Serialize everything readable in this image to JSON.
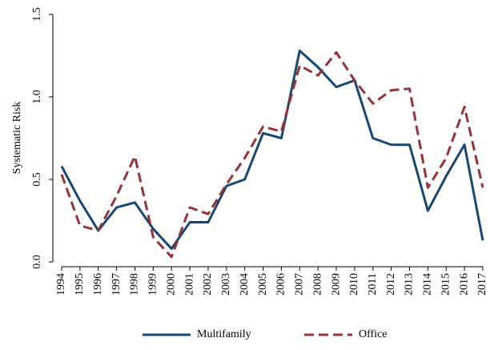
{
  "chart_data": {
    "type": "line",
    "y_label": "Systematic Risk",
    "categories": [
      "1994",
      "1995",
      "1996",
      "1997",
      "1998",
      "1999",
      "2000",
      "2001",
      "2002",
      "2003",
      "2004",
      "2005",
      "2006",
      "2007",
      "2008",
      "2009",
      "2010",
      "2011",
      "2012",
      "2013",
      "2014",
      "2015",
      "2016",
      "2017"
    ],
    "series": [
      {
        "name": "Multifamily",
        "color": "#1a476f",
        "dash": "solid",
        "values": [
          0.58,
          0.37,
          0.19,
          0.33,
          0.36,
          0.2,
          0.08,
          0.24,
          0.24,
          0.46,
          0.5,
          0.78,
          0.75,
          1.28,
          1.18,
          1.06,
          1.1,
          0.75,
          0.71,
          0.71,
          0.31,
          0.52,
          0.71,
          0.13
        ]
      },
      {
        "name": "Office",
        "color": "#90353b",
        "dash": "dashed",
        "values": [
          0.53,
          0.22,
          0.19,
          0.4,
          0.64,
          0.15,
          0.03,
          0.33,
          0.29,
          0.47,
          0.63,
          0.82,
          0.79,
          1.19,
          1.13,
          1.27,
          1.1,
          0.96,
          1.04,
          1.05,
          0.45,
          0.63,
          0.94,
          0.45
        ]
      }
    ],
    "ylim": [
      0,
      1.5
    ],
    "yticks": [
      {
        "value": 0,
        "label": "0.0"
      },
      {
        "value": 0.5,
        "label": "0.5"
      },
      {
        "value": 1,
        "label": "1.0"
      },
      {
        "value": 1.5,
        "label": "1.5"
      }
    ],
    "legend": "bottom"
  }
}
